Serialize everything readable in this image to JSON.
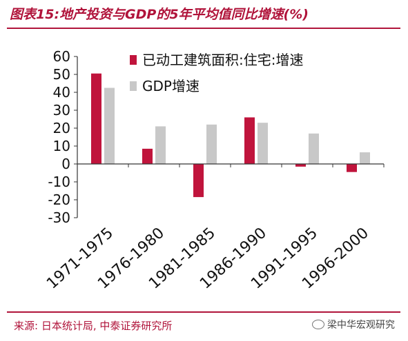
{
  "title": "图表15:地产投资与GDP的5年平均值同比增速(%)",
  "source": "来源:  日本统计局, 中泰证券研究所",
  "watermark": "梁中华宏观研究",
  "colors": {
    "series1": "#c0143c",
    "series2": "#c8c8c8",
    "accent": "#b0133a"
  },
  "chart_data": {
    "type": "bar",
    "categories": [
      "1971-1975",
      "1976-1980",
      "1981-1985",
      "1986-1990",
      "1991-1995",
      "1996-2000"
    ],
    "series": [
      {
        "name": "已动工建筑面积:住宅:增速",
        "values": [
          50.5,
          8.5,
          -18.5,
          26,
          -1.5,
          -4.5
        ]
      },
      {
        "name": "GDP增速",
        "values": [
          42.5,
          21,
          22,
          23,
          17,
          6.5
        ]
      }
    ],
    "yticks": [
      60,
      50,
      40,
      30,
      20,
      10,
      0,
      -10,
      -20,
      -30
    ],
    "ylim": [
      -30,
      60
    ],
    "legend_position": "top-center",
    "grid": false
  }
}
